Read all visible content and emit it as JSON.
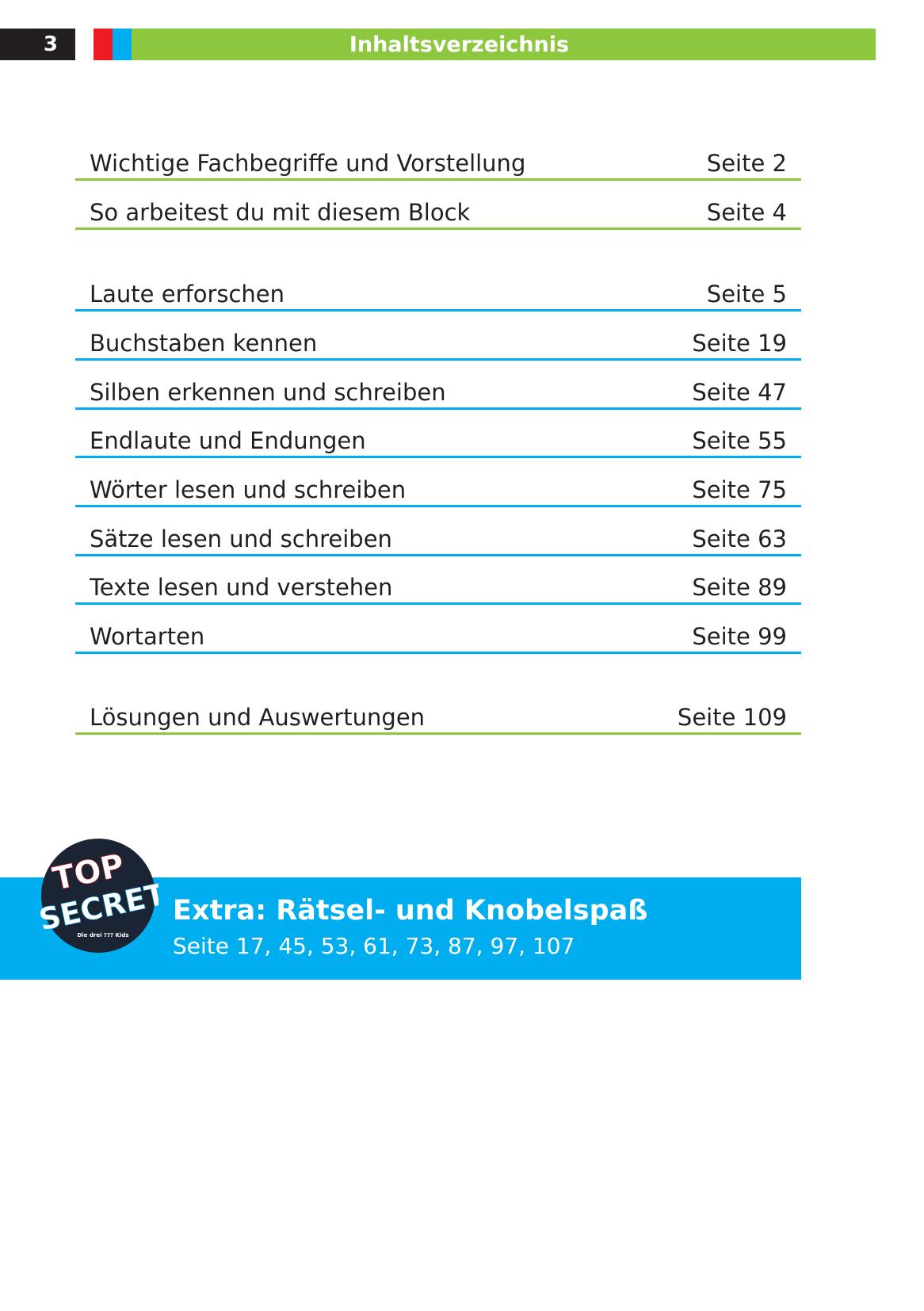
{
  "header": {
    "page_number": "3",
    "title": "Inhaltsverzeichnis",
    "colors": {
      "black": "#231f20",
      "red": "#ed1c24",
      "blue": "#00aeef",
      "green": "#8dc63f"
    }
  },
  "toc": [
    {
      "title": "Wichtige Fachbegriffe und Vorstellung",
      "page": "Seite 2",
      "color": "green"
    },
    {
      "title": "So arbeitest du mit diesem Block",
      "page": "Seite 4",
      "color": "green"
    },
    {
      "title": "Laute erforschen",
      "page": "Seite 5",
      "color": "blue"
    },
    {
      "title": "Buchstaben kennen",
      "page": "Seite 19",
      "color": "blue"
    },
    {
      "title": "Silben erkennen und schreiben",
      "page": "Seite 47",
      "color": "blue"
    },
    {
      "title": "Endlaute und Endungen",
      "page": "Seite 55",
      "color": "blue"
    },
    {
      "title": "Wörter lesen und schreiben",
      "page": "Seite 75",
      "color": "blue"
    },
    {
      "title": "Sätze lesen und schreiben",
      "page": "Seite 63",
      "color": "blue"
    },
    {
      "title": "Texte lesen und verstehen",
      "page": "Seite 89",
      "color": "blue"
    },
    {
      "title": "Wortarten",
      "page": "Seite 99",
      "color": "blue"
    },
    {
      "title": "Lösungen und Auswertungen",
      "page": "Seite 109",
      "color": "green"
    }
  ],
  "extra": {
    "title": "Extra: Rätsel- und Knobelspaß",
    "pages": "Seite 17, 45, 53, 61, 73, 87, 97, 107",
    "badge": {
      "line1": "TOP",
      "line2": "SECRET",
      "logo": "Die drei ??? Kids"
    }
  }
}
